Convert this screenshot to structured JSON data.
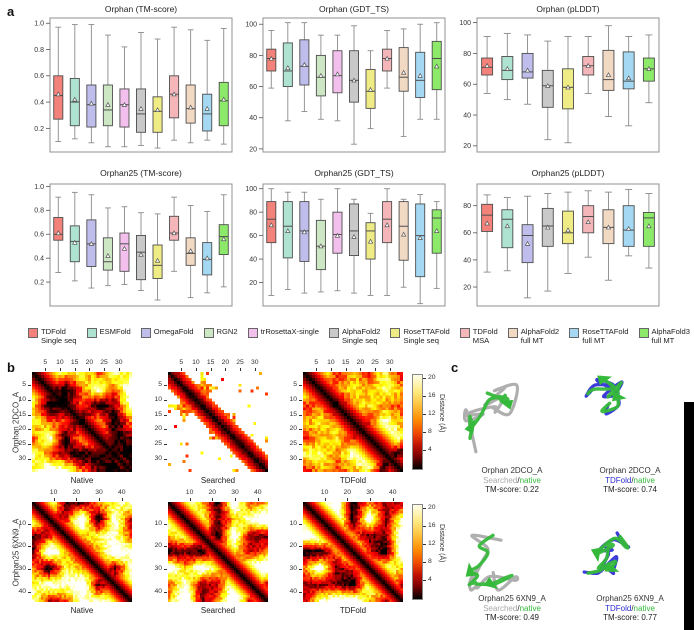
{
  "panel_labels": {
    "a": "a",
    "b": "b",
    "c": "c"
  },
  "methods": [
    {
      "line1": "TDFold",
      "line2": "Single seq",
      "color": "#f2827a"
    },
    {
      "line1": "ESMFold",
      "line2": "",
      "color": "#aee3d2"
    },
    {
      "line1": "OmegaFold",
      "line2": "",
      "color": "#bfbdeb"
    },
    {
      "line1": "RGN2",
      "line2": "",
      "color": "#cde6c4"
    },
    {
      "line1": "trRosettaX-single",
      "line2": "",
      "color": "#f3c0ee"
    },
    {
      "line1": "AlphaFold2",
      "line2": "Single seq",
      "color": "#c9c9c9"
    },
    {
      "line1": "RoseTTAFold",
      "line2": "Single seq",
      "color": "#efeb85"
    },
    {
      "line1": "TDFold",
      "line2": "MSA",
      "color": "#f5b6ba"
    },
    {
      "line1": "AlphaFold2",
      "line2": "full MT",
      "color": "#f2d9c4"
    },
    {
      "line1": "RoseTTAFold",
      "line2": "full MT",
      "color": "#a5d9f3"
    },
    {
      "line1": "AlphaFold3",
      "line2": "full MT",
      "color": "#8ce969"
    }
  ],
  "chart_data": [
    {
      "type": "box",
      "title": "Orphan (TM-score)",
      "ylim": [
        0.02,
        1.04
      ],
      "yticks": [
        0.2,
        0.4,
        0.6,
        0.8,
        1.0
      ],
      "tick_decimals": 1,
      "method_idx": [
        0,
        1,
        2,
        3,
        4,
        5,
        6,
        7,
        8,
        9,
        10
      ],
      "boxes": [
        [
          0.1,
          0.27,
          0.45,
          0.6,
          0.97,
          0.46
        ],
        [
          0.12,
          0.22,
          0.4,
          0.58,
          0.99,
          0.42
        ],
        [
          0.09,
          0.21,
          0.38,
          0.53,
          0.99,
          0.39
        ],
        [
          0.06,
          0.22,
          0.34,
          0.53,
          0.91,
          0.38
        ],
        [
          0.06,
          0.21,
          0.38,
          0.5,
          0.82,
          0.38
        ],
        [
          0.07,
          0.17,
          0.31,
          0.5,
          0.93,
          0.35
        ],
        [
          0.05,
          0.17,
          0.33,
          0.44,
          0.88,
          0.34
        ],
        [
          0.11,
          0.28,
          0.46,
          0.6,
          0.97,
          0.46
        ],
        [
          0.09,
          0.24,
          0.35,
          0.53,
          0.95,
          0.36
        ],
        [
          0.11,
          0.18,
          0.31,
          0.46,
          0.87,
          0.35
        ],
        [
          0.08,
          0.22,
          0.41,
          0.55,
          0.96,
          0.42
        ]
      ]
    },
    {
      "type": "box",
      "title": "Orphan (GDT_TS)",
      "ylim": [
        18,
        104
      ],
      "yticks": [
        20,
        40,
        60,
        80,
        100
      ],
      "tick_decimals": 0,
      "method_idx": [
        0,
        1,
        2,
        3,
        4,
        5,
        6,
        7,
        8,
        9,
        10
      ],
      "boxes": [
        [
          59,
          70,
          78,
          84,
          96,
          78
        ],
        [
          38,
          60,
          70,
          88,
          101,
          72
        ],
        [
          44,
          61,
          73,
          90,
          101,
          74
        ],
        [
          39,
          54,
          66,
          80,
          93,
          67
        ],
        [
          38,
          56,
          67,
          83,
          93,
          68
        ],
        [
          23,
          50,
          64,
          83,
          99,
          64
        ],
        [
          33,
          46,
          57,
          71,
          83,
          58
        ],
        [
          59,
          70,
          78,
          84,
          96,
          78
        ],
        [
          28,
          57,
          66,
          85,
          97,
          69
        ],
        [
          39,
          53,
          64,
          82,
          100,
          67
        ],
        [
          39,
          58,
          78,
          89,
          101,
          73
        ]
      ]
    },
    {
      "type": "box",
      "title": "Orphan (pLDDT)",
      "ylim": [
        16,
        103
      ],
      "yticks": [
        20,
        40,
        60,
        80,
        100
      ],
      "tick_decimals": 0,
      "method_idx": [
        0,
        1,
        2,
        5,
        6,
        7,
        8,
        9,
        10
      ],
      "boxes": [
        [
          54,
          66,
          71,
          77,
          91,
          72
        ],
        [
          50,
          63,
          69,
          78,
          93,
          70
        ],
        [
          47,
          64,
          68,
          80,
          92,
          69
        ],
        [
          24,
          45,
          59,
          69,
          88,
          59
        ],
        [
          22,
          44,
          58,
          70,
          91,
          58
        ],
        [
          54,
          66,
          72,
          78,
          91,
          72
        ],
        [
          39,
          56,
          63,
          82,
          98,
          66
        ],
        [
          33,
          57,
          62,
          81,
          91,
          64
        ],
        [
          48,
          62,
          70,
          77,
          92,
          70
        ]
      ]
    },
    {
      "type": "box",
      "title": "Orphan25 (TM-score)",
      "ylim": [
        0.0,
        1.02
      ],
      "yticks": [
        0.2,
        0.4,
        0.6,
        0.8,
        1.0
      ],
      "tick_decimals": 1,
      "method_idx": [
        0,
        1,
        2,
        3,
        4,
        5,
        6,
        7,
        8,
        9,
        10
      ],
      "boxes": [
        [
          0.28,
          0.55,
          0.6,
          0.74,
          0.91,
          0.61
        ],
        [
          0.21,
          0.37,
          0.54,
          0.67,
          0.95,
          0.53
        ],
        [
          0.15,
          0.33,
          0.52,
          0.72,
          0.93,
          0.52
        ],
        [
          0.17,
          0.3,
          0.37,
          0.57,
          0.82,
          0.42
        ],
        [
          0.18,
          0.29,
          0.52,
          0.61,
          0.83,
          0.48
        ],
        [
          0.13,
          0.22,
          0.45,
          0.59,
          0.78,
          0.43
        ],
        [
          0.05,
          0.23,
          0.34,
          0.51,
          0.77,
          0.38
        ],
        [
          0.29,
          0.55,
          0.61,
          0.75,
          0.91,
          0.61
        ],
        [
          0.07,
          0.34,
          0.44,
          0.57,
          0.84,
          0.46
        ],
        [
          0.11,
          0.26,
          0.39,
          0.53,
          0.79,
          0.4
        ],
        [
          0.16,
          0.43,
          0.58,
          0.68,
          0.93,
          0.56
        ]
      ]
    },
    {
      "type": "box",
      "title": "Orphan25 (GDT_TS)",
      "ylim": [
        0,
        104
      ],
      "yticks": [
        20,
        40,
        60,
        80,
        100
      ],
      "tick_decimals": 0,
      "method_idx": [
        0,
        1,
        2,
        3,
        4,
        5,
        6,
        7,
        8,
        9,
        10
      ],
      "boxes": [
        [
          9,
          54,
          74,
          89,
          100,
          69
        ],
        [
          14,
          41,
          68,
          89,
          97,
          64
        ],
        [
          11,
          38,
          64,
          89,
          97,
          63
        ],
        [
          12,
          31,
          51,
          73,
          91,
          51
        ],
        [
          13,
          45,
          61,
          80,
          100,
          60
        ],
        [
          11,
          43,
          64,
          87,
          91,
          59
        ],
        [
          9,
          40,
          64,
          71,
          79,
          55
        ],
        [
          9,
          54,
          74,
          89,
          100,
          69
        ],
        [
          16,
          39,
          68,
          89,
          91,
          61
        ],
        [
          2,
          25,
          60,
          87,
          95,
          58
        ],
        [
          15,
          45,
          75,
          82,
          89,
          64
        ]
      ]
    },
    {
      "type": "box",
      "title": "Orphan25 (pLDDT)",
      "ylim": [
        6,
        96
      ],
      "yticks": [
        20,
        40,
        60,
        80
      ],
      "tick_decimals": 0,
      "method_idx": [
        0,
        1,
        2,
        5,
        6,
        7,
        8,
        9,
        10
      ],
      "boxes": [
        [
          31,
          61,
          73,
          81,
          88,
          67
        ],
        [
          32,
          49,
          70,
          77,
          86,
          65
        ],
        [
          12,
          38,
          58,
          66,
          87,
          52
        ],
        [
          17,
          50,
          65,
          78,
          89,
          64
        ],
        [
          30,
          52,
          60,
          76,
          90,
          62
        ],
        [
          42,
          60,
          72,
          80,
          91,
          68
        ],
        [
          25,
          52,
          64,
          77,
          90,
          64
        ],
        [
          43,
          50,
          62,
          80,
          92,
          63
        ],
        [
          34,
          50,
          71,
          75,
          89,
          65
        ]
      ]
    },
    {
      "type": "heatmap",
      "row_label": "Orphan 2DCO_A",
      "n": 34,
      "axis_ticks": [
        5,
        10,
        15,
        20,
        25,
        30
      ],
      "colorbar": {
        "label": "Distance (Å)",
        "ticks": [
          4,
          8,
          12,
          16,
          20
        ],
        "vmax": 21
      },
      "maps": [
        {
          "caption": "Native",
          "style": "dense",
          "seed": 101
        },
        {
          "caption": "Searched",
          "style": "sparse",
          "seed": 202
        },
        {
          "caption": "TDFold",
          "style": "dense",
          "seed": 303
        }
      ]
    },
    {
      "type": "heatmap",
      "row_label": "Orphan25 6XN9_A",
      "n": 44,
      "axis_ticks": [
        10,
        20,
        30,
        40
      ],
      "colorbar": {
        "label": "Distance (Å)",
        "ticks": [
          4,
          8,
          12,
          16,
          20
        ],
        "vmax": 21
      },
      "maps": [
        {
          "caption": "Native",
          "style": "dense",
          "seed": 404
        },
        {
          "caption": "Searched",
          "style": "dense",
          "seed": 505
        },
        {
          "caption": "TDFold",
          "style": "dense",
          "seed": 606
        }
      ]
    }
  ],
  "structures": [
    {
      "name": "Orphan 2DCO_A",
      "model": "Searched",
      "model_color": "#a8a8a8",
      "native_label": "native",
      "native_color": "#35b93a",
      "tm": "TM-score: 0.22",
      "seed": 7,
      "deviation": 16
    },
    {
      "name": "Orphan 2DCO_A",
      "model": "TDFold",
      "model_color": "#2b2bd5",
      "native_label": "native",
      "native_color": "#35b93a",
      "tm": "TM-score: 0.74",
      "seed": 8,
      "deviation": 5
    },
    {
      "name": "Orphan25 6XN9_A",
      "model": "Searched",
      "model_color": "#a8a8a8",
      "native_label": "native",
      "native_color": "#35b93a",
      "tm": "TM-score: 0.49",
      "seed": 9,
      "deviation": 12
    },
    {
      "name": "Orphan25 6XN9_A",
      "model": "TDFold",
      "model_color": "#2b2bd5",
      "native_label": "native",
      "native_color": "#35b93a",
      "tm": "TM-score: 0.77",
      "seed": 10,
      "deviation": 5
    }
  ],
  "style_colors": {
    "box_border": "#4d4d4d",
    "whisker": "#8a8a8a",
    "frame": "#909090"
  }
}
